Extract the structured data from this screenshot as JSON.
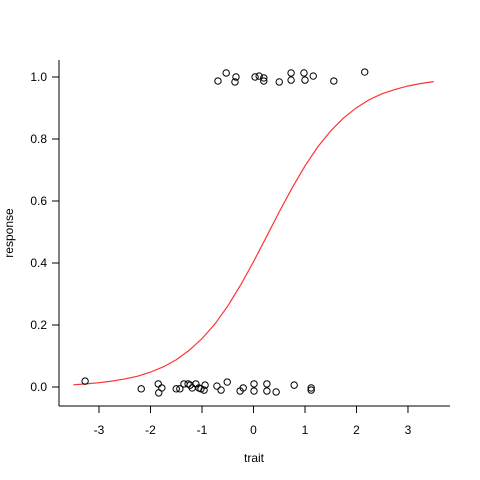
{
  "chart_data": {
    "type": "scatter",
    "x_label": "trait",
    "y_label": "response",
    "xlim": [
      -3.777,
      3.816
    ],
    "ylim": [
      -0.0613,
      1.0548
    ],
    "xticks": [
      -3,
      -2,
      -1,
      0,
      1,
      2,
      3
    ],
    "yticks": [
      {
        "value": 0,
        "label": "0.0"
      },
      {
        "value": 0.2,
        "label": "0.2"
      },
      {
        "value": 0.4,
        "label": "0.4"
      },
      {
        "value": 0.6,
        "label": "0.6"
      },
      {
        "value": 0.8,
        "label": "0.8"
      },
      {
        "value": 1,
        "label": "1.0"
      }
    ],
    "points": {
      "color": "#000000",
      "x": [
        -0.69,
        -0.53,
        -0.34,
        -0.36,
        0.03,
        0.11,
        0.2,
        0.2,
        0.5,
        0.73,
        0.73,
        0.98,
        1.0,
        1.16,
        1.56,
        2.16,
        -3.27,
        -2.18,
        -1.85,
        -1.78,
        -1.84,
        -1.5,
        -1.43,
        -1.35,
        -1.27,
        -1.23,
        -1.19,
        -1.12,
        -1.06,
        -1.02,
        -0.94,
        -0.96,
        -0.71,
        -0.63,
        -0.51,
        -0.26,
        -0.2,
        0.01,
        0.01,
        0.26,
        0.26,
        0.44,
        0.79,
        1.12,
        1.12
      ],
      "y": [
        0.987,
        1.013,
        1.0,
        0.984,
        1.0,
        1.003,
        0.997,
        0.987,
        0.984,
        1.013,
        0.99,
        1.013,
        0.99,
        1.003,
        0.987,
        1.016,
        0.019,
        -0.006,
        0.01,
        -0.003,
        -0.019,
        -0.006,
        -0.006,
        0.01,
        0.01,
        0.006,
        -0.003,
        0.01,
        -0.003,
        -0.006,
        0.006,
        -0.01,
        0.003,
        -0.01,
        0.016,
        -0.013,
        -0.003,
        0.01,
        -0.013,
        0.01,
        -0.013,
        -0.016,
        0.006,
        -0.003,
        -0.01
      ]
    },
    "curve": {
      "color": "#ff3333",
      "x": [
        -3.5,
        -3.25,
        -3.0,
        -2.75,
        -2.5,
        -2.25,
        -2.0,
        -1.75,
        -1.5,
        -1.25,
        -1.0,
        -0.75,
        -0.5,
        -0.25,
        0,
        0.25,
        0.5,
        0.75,
        1.0,
        1.25,
        1.5,
        1.75,
        2.0,
        2.25,
        2.5,
        2.75,
        3.0,
        3.25,
        3.5
      ],
      "values": [
        0.007,
        0.01,
        0.014,
        0.019,
        0.026,
        0.035,
        0.048,
        0.065,
        0.088,
        0.118,
        0.156,
        0.203,
        0.261,
        0.329,
        0.404,
        0.484,
        0.565,
        0.642,
        0.713,
        0.775,
        0.826,
        0.868,
        0.901,
        0.927,
        0.946,
        0.96,
        0.971,
        0.979,
        0.985
      ]
    }
  }
}
